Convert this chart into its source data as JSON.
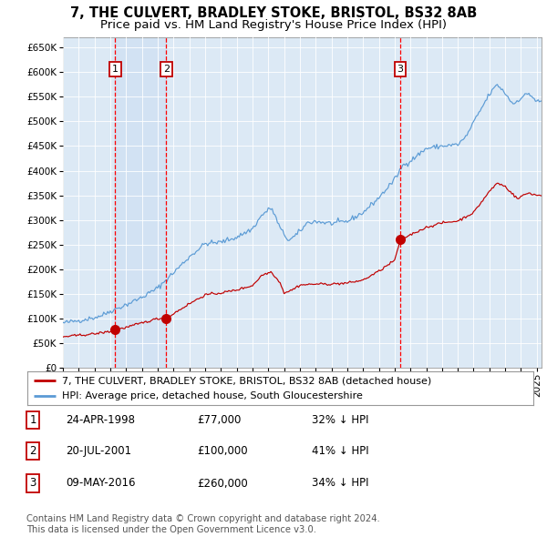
{
  "title": "7, THE CULVERT, BRADLEY STOKE, BRISTOL, BS32 8AB",
  "subtitle": "Price paid vs. HM Land Registry's House Price Index (HPI)",
  "ylim": [
    0,
    670000
  ],
  "yticks": [
    0,
    50000,
    100000,
    150000,
    200000,
    250000,
    300000,
    350000,
    400000,
    450000,
    500000,
    550000,
    600000,
    650000
  ],
  "xlim_start": 1995.0,
  "xlim_end": 2025.3,
  "background_color": "#ffffff",
  "chart_bg_color": "#dce9f5",
  "grid_color": "#ffffff",
  "purchases": [
    {
      "date_num": 1998.31,
      "price": 77000,
      "label": "1"
    },
    {
      "date_num": 2001.55,
      "price": 100000,
      "label": "2"
    },
    {
      "date_num": 2016.36,
      "price": 260000,
      "label": "3"
    }
  ],
  "purchase_dates_str": [
    "24-APR-1998",
    "20-JUL-2001",
    "09-MAY-2016"
  ],
  "purchase_prices_str": [
    "£77,000",
    "£100,000",
    "£260,000"
  ],
  "purchase_pct_str": [
    "32% ↓ HPI",
    "41% ↓ HPI",
    "34% ↓ HPI"
  ],
  "hpi_line_color": "#5b9bd5",
  "price_line_color": "#c00000",
  "marker_color": "#c00000",
  "dashed_line_color": "#ff0000",
  "shade_color": "#c5d9f0",
  "legend_house_label": "7, THE CULVERT, BRADLEY STOKE, BRISTOL, BS32 8AB (detached house)",
  "legend_hpi_label": "HPI: Average price, detached house, South Gloucestershire",
  "footer_text": "Contains HM Land Registry data © Crown copyright and database right 2024.\nThis data is licensed under the Open Government Licence v3.0.",
  "title_fontsize": 10.5,
  "subtitle_fontsize": 9.5,
  "axis_fontsize": 7.5,
  "legend_fontsize": 8.0,
  "table_fontsize": 8.5,
  "footer_fontsize": 7.2,
  "hpi_anchors_t": [
    1995.0,
    1996.0,
    1997.0,
    1997.5,
    1998.0,
    1999.0,
    2000.0,
    2001.0,
    2002.0,
    2003.0,
    2004.0,
    2005.0,
    2006.0,
    2007.0,
    2007.6,
    2008.2,
    2008.8,
    2009.3,
    2009.8,
    2010.5,
    2011.0,
    2012.0,
    2013.0,
    2014.0,
    2015.0,
    2016.0,
    2016.5,
    2017.0,
    2018.0,
    2019.0,
    2020.0,
    2020.5,
    2021.0,
    2022.0,
    2022.5,
    2023.0,
    2023.5,
    2024.0,
    2024.5,
    2025.0
  ],
  "hpi_anchors_v": [
    91000,
    96000,
    102000,
    107000,
    115000,
    128000,
    143000,
    162000,
    193000,
    225000,
    252000,
    255000,
    265000,
    282000,
    310000,
    325000,
    280000,
    258000,
    270000,
    295000,
    297000,
    293000,
    297000,
    315000,
    345000,
    382000,
    410000,
    420000,
    445000,
    450000,
    453000,
    468000,
    498000,
    555000,
    575000,
    557000,
    535000,
    548000,
    557000,
    540000
  ],
  "price_anchors_t": [
    1995.0,
    1996.0,
    1997.0,
    1998.0,
    1998.31,
    1999.0,
    2000.0,
    2001.0,
    2001.55,
    2002.0,
    2003.0,
    2004.0,
    2005.0,
    2006.0,
    2007.0,
    2007.6,
    2008.2,
    2008.8,
    2009.0,
    2009.5,
    2010.0,
    2011.0,
    2012.0,
    2013.0,
    2014.0,
    2015.0,
    2016.0,
    2016.36,
    2017.0,
    2018.0,
    2019.0,
    2020.0,
    2021.0,
    2022.0,
    2022.5,
    2023.0,
    2023.4,
    2023.8,
    2024.0,
    2024.5,
    2025.0
  ],
  "price_anchors_v": [
    63000,
    66000,
    69000,
    74000,
    77000,
    82000,
    91000,
    100000,
    100000,
    110000,
    130000,
    148000,
    152000,
    158000,
    167000,
    188000,
    195000,
    170000,
    152000,
    158000,
    168000,
    170000,
    170000,
    172000,
    178000,
    196000,
    218000,
    260000,
    270000,
    285000,
    294000,
    298000,
    315000,
    358000,
    375000,
    368000,
    355000,
    342000,
    348000,
    355000,
    350000
  ]
}
